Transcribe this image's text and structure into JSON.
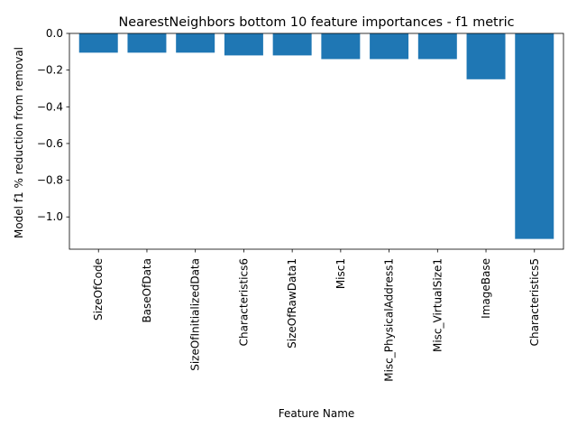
{
  "chart_data": {
    "type": "bar",
    "title": "NearestNeighbors bottom 10 feature importances - f1 metric",
    "xlabel": "Feature Name",
    "ylabel": "Model f1 % reduction from removal",
    "categories": [
      "SizeOfCode",
      "BaseOfData",
      "SizeOfInitializedData",
      "Characteristics6",
      "SizeOfRawData1",
      "Misc1",
      "Misc_PhysicalAddress1",
      "Misc_VirtualSize1",
      "ImageBase",
      "Characteristics5"
    ],
    "values": [
      -0.105,
      -0.105,
      -0.105,
      -0.12,
      -0.12,
      -0.14,
      -0.14,
      -0.14,
      -0.25,
      -1.12
    ],
    "ylim": [
      -1.176,
      0.0
    ],
    "yticks": [
      0.0,
      -0.2,
      -0.4,
      -0.6,
      -0.8,
      -1.0
    ],
    "ytick_labels": [
      "0.0",
      "−0.2",
      "−0.4",
      "−0.6",
      "−0.8",
      "−1.0"
    ],
    "grid": false,
    "bar_color": "#1f77b4"
  }
}
